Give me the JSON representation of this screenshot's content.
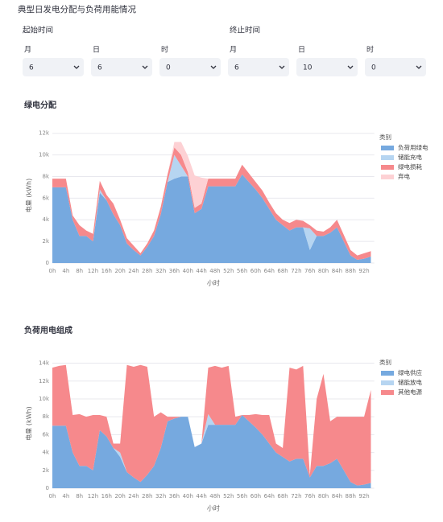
{
  "header": {
    "title": "典型日发电分配与负荷用能情况"
  },
  "filters": {
    "start_label": "起始时间",
    "end_label": "终止时间",
    "fields": [
      {
        "label": "月",
        "value": "6"
      },
      {
        "label": "日",
        "value": "6"
      },
      {
        "label": "时",
        "value": "0"
      },
      {
        "label": "月",
        "value": "6"
      },
      {
        "label": "日",
        "value": "10"
      },
      {
        "label": "时",
        "value": "0"
      }
    ]
  },
  "chart_data": [
    {
      "type": "stacked_area",
      "title": "绿电分配",
      "x_label": "小时",
      "y_label": "电量 (kWh)",
      "legend_title": "类别",
      "legend": "right",
      "grid": true,
      "x": [
        0,
        2,
        4,
        6,
        8,
        10,
        12,
        14,
        16,
        18,
        20,
        22,
        24,
        26,
        28,
        30,
        32,
        34,
        36,
        38,
        40,
        42,
        44,
        46,
        48,
        50,
        52,
        54,
        56,
        58,
        60,
        62,
        64,
        66,
        68,
        70,
        72,
        74,
        76,
        78,
        80,
        82,
        84,
        86,
        88,
        90,
        92,
        94
      ],
      "xlim": [
        0,
        95
      ],
      "xticks": [
        {
          "value": 0,
          "label": "0h"
        },
        {
          "value": 4,
          "label": "4h"
        },
        {
          "value": 8,
          "label": "8h"
        },
        {
          "value": 12,
          "label": "12h"
        },
        {
          "value": 16,
          "label": "16h"
        },
        {
          "value": 20,
          "label": "20h"
        },
        {
          "value": 24,
          "label": "24h"
        },
        {
          "value": 28,
          "label": "28h"
        },
        {
          "value": 32,
          "label": "32h"
        },
        {
          "value": 36,
          "label": "36h"
        },
        {
          "value": 40,
          "label": "40h"
        },
        {
          "value": 44,
          "label": "44h"
        },
        {
          "value": 48,
          "label": "48h"
        },
        {
          "value": 52,
          "label": "52h"
        },
        {
          "value": 56,
          "label": "56h"
        },
        {
          "value": 60,
          "label": "60h"
        },
        {
          "value": 64,
          "label": "64h"
        },
        {
          "value": 68,
          "label": "68h"
        },
        {
          "value": 72,
          "label": "72h"
        },
        {
          "value": 76,
          "label": "76h"
        },
        {
          "value": 80,
          "label": "80h"
        },
        {
          "value": 84,
          "label": "84h"
        },
        {
          "value": 88,
          "label": "88h"
        },
        {
          "value": 92,
          "label": "92h"
        }
      ],
      "ylim": [
        0,
        12500
      ],
      "yticks": [
        0,
        {
          "value": 2000,
          "label": "2k"
        },
        {
          "value": 4000,
          "label": "4k"
        },
        {
          "value": 6000,
          "label": "6k"
        },
        {
          "value": 8000,
          "label": "8k"
        },
        {
          "value": 10000,
          "label": "10k"
        },
        {
          "value": 12000,
          "label": "12k"
        }
      ],
      "series": [
        {
          "name": "负荷用绿电",
          "color": "#76a9df",
          "values": [
            7000,
            7000,
            7000,
            4000,
            2500,
            2500,
            2000,
            6500,
            5800,
            4500,
            3500,
            1800,
            1200,
            700,
            1500,
            2500,
            4500,
            7500,
            7800,
            8000,
            8000,
            4600,
            5000,
            7100,
            7100,
            7100,
            7100,
            7100,
            8200,
            7500,
            6800,
            6000,
            5000,
            4000,
            3500,
            3000,
            3300,
            3300,
            1200,
            2500,
            2500,
            2800,
            3300,
            2000,
            700,
            300,
            400,
            600
          ]
        },
        {
          "name": "储能充电",
          "color": "#b6d5f1",
          "values": [
            0,
            0,
            0,
            0,
            0,
            0,
            0,
            300,
            0,
            0,
            0,
            0,
            0,
            0,
            0,
            0,
            0,
            0,
            2200,
            1000,
            0,
            0,
            0,
            0,
            0,
            0,
            0,
            0,
            0,
            0,
            0,
            0,
            0,
            0,
            0,
            0,
            0,
            0,
            2000,
            0,
            0,
            0,
            0,
            0,
            0,
            0,
            0,
            0
          ]
        },
        {
          "name": "绿电损耗",
          "color": "#f6898c",
          "values": [
            800,
            800,
            800,
            400,
            1000,
            500,
            700,
            800,
            500,
            1000,
            500,
            500,
            400,
            200,
            300,
            500,
            700,
            700,
            700,
            1000,
            400,
            500,
            500,
            700,
            700,
            700,
            700,
            700,
            900,
            800,
            700,
            700,
            600,
            600,
            500,
            700,
            700,
            600,
            300,
            500,
            400,
            500,
            700,
            600,
            500,
            400,
            500,
            500
          ]
        },
        {
          "name": "弃电",
          "color": "#fdd1d4",
          "values": [
            0,
            0,
            0,
            0,
            0,
            0,
            0,
            0,
            0,
            0,
            0,
            0,
            0,
            0,
            0,
            0,
            0,
            0,
            500,
            1200,
            1500,
            3000,
            2400,
            0,
            0,
            0,
            0,
            0,
            0,
            0,
            0,
            0,
            0,
            0,
            0,
            0,
            0,
            0,
            0,
            0,
            0,
            0,
            0,
            0,
            0,
            0,
            0,
            0
          ]
        }
      ]
    },
    {
      "type": "stacked_area",
      "title": "负荷用电组成",
      "x_label": "小时",
      "y_label": "电量 (kWh)",
      "legend_title": "类别",
      "legend": "right",
      "grid": true,
      "x": [
        0,
        2,
        4,
        6,
        8,
        10,
        12,
        14,
        16,
        18,
        20,
        22,
        24,
        26,
        28,
        30,
        32,
        34,
        36,
        38,
        40,
        42,
        44,
        46,
        48,
        50,
        52,
        54,
        56,
        58,
        60,
        62,
        64,
        66,
        68,
        70,
        72,
        74,
        76,
        78,
        80,
        82,
        84,
        86,
        88,
        90,
        92,
        94
      ],
      "xlim": [
        0,
        95
      ],
      "xticks": [
        {
          "value": 0,
          "label": "0h"
        },
        {
          "value": 4,
          "label": "4h"
        },
        {
          "value": 8,
          "label": "8h"
        },
        {
          "value": 12,
          "label": "12h"
        },
        {
          "value": 16,
          "label": "16h"
        },
        {
          "value": 20,
          "label": "20h"
        },
        {
          "value": 24,
          "label": "24h"
        },
        {
          "value": 28,
          "label": "28h"
        },
        {
          "value": 32,
          "label": "32h"
        },
        {
          "value": 36,
          "label": "36h"
        },
        {
          "value": 40,
          "label": "40h"
        },
        {
          "value": 44,
          "label": "44h"
        },
        {
          "value": 48,
          "label": "48h"
        },
        {
          "value": 52,
          "label": "52h"
        },
        {
          "value": 56,
          "label": "56h"
        },
        {
          "value": 60,
          "label": "60h"
        },
        {
          "value": 64,
          "label": "64h"
        },
        {
          "value": 68,
          "label": "68h"
        },
        {
          "value": 72,
          "label": "72h"
        },
        {
          "value": 76,
          "label": "76h"
        },
        {
          "value": 80,
          "label": "80h"
        },
        {
          "value": 84,
          "label": "84h"
        },
        {
          "value": 88,
          "label": "88h"
        },
        {
          "value": 92,
          "label": "92h"
        }
      ],
      "ylim": [
        0,
        14500
      ],
      "yticks": [
        0,
        {
          "value": 2000,
          "label": "2k"
        },
        {
          "value": 4000,
          "label": "4k"
        },
        {
          "value": 6000,
          "label": "6k"
        },
        {
          "value": 8000,
          "label": "8k"
        },
        {
          "value": 10000,
          "label": "10k"
        },
        {
          "value": 12000,
          "label": "12k"
        },
        {
          "value": 14000,
          "label": "14k"
        }
      ],
      "series": [
        {
          "name": "绿电供应",
          "color": "#76a9df",
          "values": [
            7000,
            7000,
            7000,
            4000,
            2500,
            2500,
            2000,
            6500,
            5800,
            4500,
            3500,
            1800,
            1200,
            700,
            1500,
            2500,
            4500,
            7500,
            7800,
            8000,
            8000,
            4600,
            5000,
            7100,
            7100,
            7100,
            7100,
            7100,
            8200,
            7500,
            6800,
            6000,
            5000,
            4000,
            3500,
            3000,
            3300,
            3300,
            1200,
            2500,
            2500,
            2800,
            3300,
            2000,
            700,
            300,
            400,
            600
          ]
        },
        {
          "name": "储能放电",
          "color": "#b6d5f1",
          "values": [
            0,
            0,
            0,
            0,
            0,
            0,
            0,
            0,
            0,
            0,
            500,
            0,
            0,
            0,
            0,
            0,
            0,
            0,
            0,
            0,
            0,
            0,
            0,
            1200,
            0,
            0,
            0,
            0,
            0,
            0,
            0,
            0,
            0,
            0,
            0,
            0,
            0,
            0,
            0,
            0,
            0,
            0,
            0,
            0,
            0,
            0,
            0,
            0
          ]
        },
        {
          "name": "其他电源",
          "color": "#f6898c",
          "values": [
            6500,
            6700,
            6800,
            4200,
            5800,
            5500,
            6200,
            1700,
            2200,
            500,
            1000,
            12000,
            12400,
            13100,
            12100,
            5500,
            4000,
            500,
            200,
            0,
            0,
            0,
            0,
            5200,
            6600,
            6400,
            6600,
            900,
            0,
            700,
            1500,
            2200,
            3200,
            1000,
            1000,
            10500,
            10000,
            10400,
            300,
            7500,
            10300,
            4700,
            4700,
            6000,
            7300,
            7700,
            7600,
            10400
          ]
        }
      ]
    }
  ]
}
